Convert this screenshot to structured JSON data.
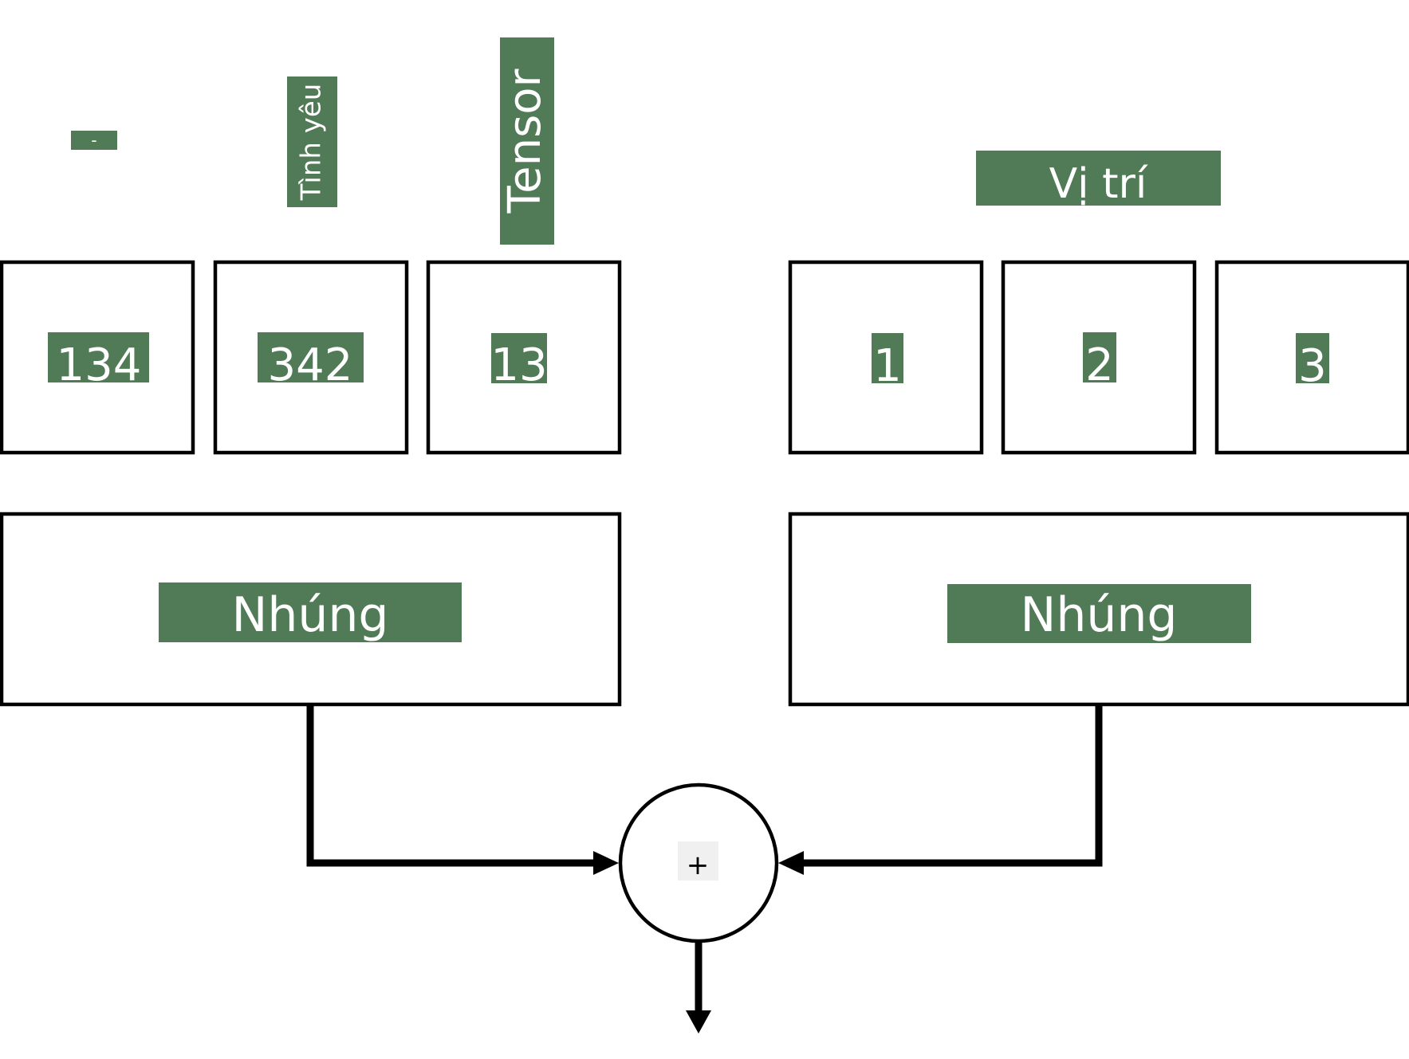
{
  "tokens": {
    "words": [
      "-",
      "Tình yêu",
      "Tensor"
    ],
    "ids": [
      "134",
      "342",
      "13"
    ]
  },
  "positions": {
    "header": "Vị trí",
    "ids": [
      "1",
      "2",
      "3"
    ]
  },
  "embeddings": {
    "token_label": "Nhúng",
    "position_label": "Nhúng"
  },
  "combine": {
    "operator": "+"
  },
  "colors": {
    "label_fill": "#517a56",
    "label_text": "#ffffff",
    "stroke": "#000000"
  }
}
